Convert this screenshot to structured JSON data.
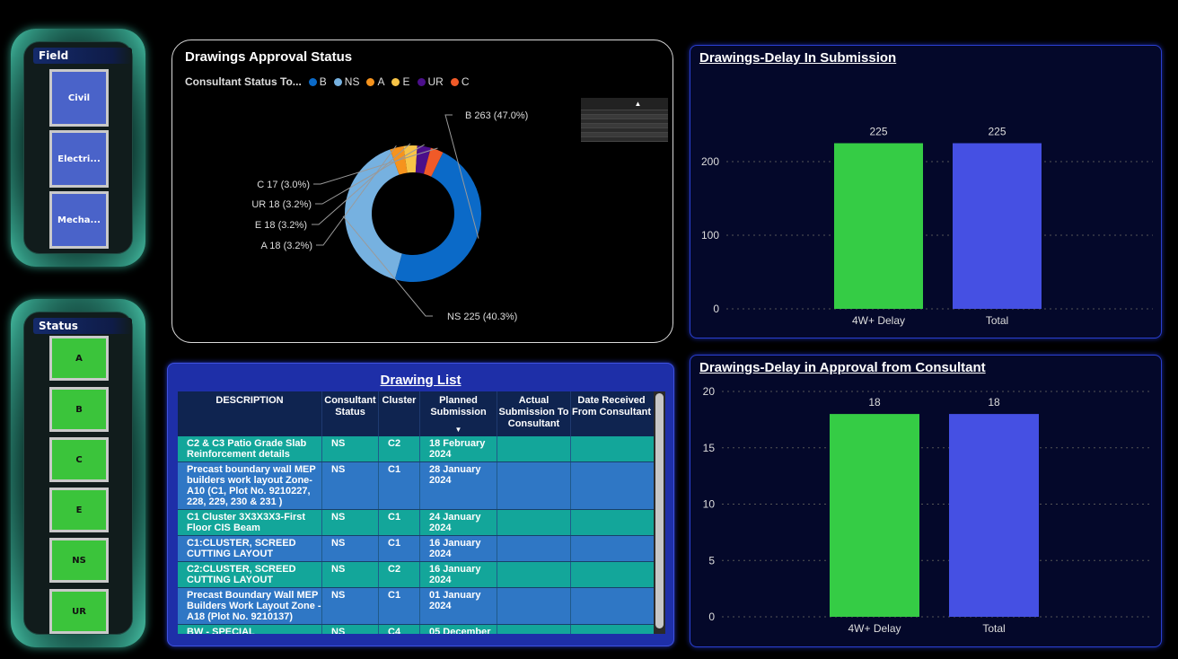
{
  "slicers": {
    "field": {
      "title": "Field",
      "items": [
        "Civil",
        "Electri...",
        "Mecha..."
      ]
    },
    "status": {
      "title": "Status",
      "items": [
        "A",
        "B",
        "C",
        "E",
        "NS",
        "UR"
      ]
    }
  },
  "donut": {
    "title": "Drawings Approval Status",
    "legend_title": "Consultant Status To...",
    "legend": [
      {
        "label": "B",
        "color": "#0b6ac8"
      },
      {
        "label": "NS",
        "color": "#76b1e0"
      },
      {
        "label": "A",
        "color": "#f6931d"
      },
      {
        "label": "E",
        "color": "#f8c447"
      },
      {
        "label": "UR",
        "color": "#4b0f8a"
      },
      {
        "label": "C",
        "color": "#f05a28"
      }
    ],
    "slice_labels": [
      "B 263 (47.0%)",
      "NS 225 (40.3%)",
      "A 18 (3.2%)",
      "E 18 (3.2%)",
      "UR 18 (3.2%)",
      "C 17 (3.0%)"
    ]
  },
  "status_table": {
    "header": [
      "Sta tus",
      "Status description"
    ],
    "rows": [
      [
        "A",
        "Approved"
      ],
      [
        "B",
        "Approved as Noted"
      ],
      [
        "E",
        "Information"
      ],
      [
        "NS",
        "Not Submitted"
      ],
      [
        "D",
        "Rejected"
      ],
      [
        "C",
        "Revise & Resubmit"
      ],
      [
        "UR",
        "Under Review"
      ]
    ]
  },
  "bar1": {
    "title": "Drawings-Delay In Submission"
  },
  "bar2": {
    "title": "Drawings-Delay in Approval from Consultant"
  },
  "drawing_list": {
    "title": "Drawing List",
    "columns": [
      "DESCRIPTION",
      "Consultant Status",
      "Cluster",
      "Planned Submission",
      "Actual Submission To Consultant",
      "Date Received From Consultant"
    ],
    "rows": [
      [
        "C2 & C3 Patio Grade Slab Reinforcement details",
        "NS",
        "C2",
        "18 February 2024",
        "",
        ""
      ],
      [
        "Precast boundary wall MEP builders work layout Zone-A10 (C1, Plot No. 9210227, 228, 229, 230 & 231 )",
        "NS",
        "C1",
        "28 January 2024",
        "",
        ""
      ],
      [
        "C1 Cluster 3X3X3X3-First Floor CIS Beam",
        "NS",
        "C1",
        "24 January 2024",
        "",
        ""
      ],
      [
        "C1:CLUSTER, SCREED CUTTING LAYOUT",
        "NS",
        "C1",
        "16 January 2024",
        "",
        ""
      ],
      [
        "C2:CLUSTER, SCREED CUTTING LAYOUT",
        "NS",
        "C2",
        "16 January 2024",
        "",
        ""
      ],
      [
        "Precast Boundary Wall MEP Builders Work Layout Zone - A18 (Plot No. 9210137)",
        "NS",
        "C1",
        "01 January 2024",
        "",
        ""
      ],
      [
        "BW - SPECIAL",
        "NS",
        "C4",
        "05 December",
        "",
        ""
      ]
    ]
  },
  "chart_data": [
    {
      "type": "pie",
      "title": "Drawings Approval Status",
      "categories": [
        "B",
        "NS",
        "A",
        "E",
        "UR",
        "C"
      ],
      "values": [
        263,
        225,
        18,
        18,
        18,
        17
      ],
      "percent": [
        47.0,
        40.3,
        3.2,
        3.2,
        3.2,
        3.0
      ],
      "legend_title": "Consultant Status To..."
    },
    {
      "type": "bar",
      "title": "Drawings-Delay In Submission",
      "categories": [
        "4W+ Delay",
        "Total"
      ],
      "values": [
        225,
        225
      ],
      "colors": [
        "#35cc45",
        "#4550e3"
      ],
      "yticks": [
        0,
        100,
        200
      ],
      "ylim": [
        0,
        250
      ]
    },
    {
      "type": "bar",
      "title": "Drawings-Delay in Approval from Consultant",
      "categories": [
        "4W+ Delay",
        "Total"
      ],
      "values": [
        18,
        18
      ],
      "colors": [
        "#35cc45",
        "#4550e3"
      ],
      "yticks": [
        0,
        5,
        10,
        15,
        20
      ],
      "ylim": [
        0,
        20
      ]
    }
  ]
}
